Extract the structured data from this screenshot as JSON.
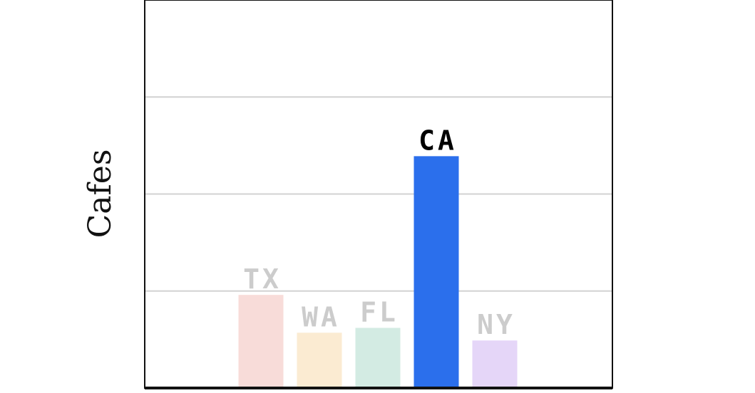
{
  "chart_data": {
    "type": "bar",
    "title": "",
    "xlabel": "",
    "ylabel": "Cafes",
    "categories": [
      "TX",
      "WA",
      "FL",
      "CA",
      "NY"
    ],
    "values": [
      96,
      57,
      62,
      239,
      49
    ],
    "ylim": [
      0,
      400
    ],
    "gridlines": [
      100,
      200,
      300
    ],
    "grid": true,
    "highlight": "CA",
    "colors": {
      "TX": "#f8dcd9",
      "WA": "#fbebd2",
      "FL": "#d3ebe3",
      "CA": "#2b6fec",
      "NY": "#e5d6f8"
    },
    "label_colors": {
      "muted": "#cccccc",
      "highlight": "#000000"
    },
    "axes_color": "#111111",
    "grid_color": "#d2d2d2"
  }
}
